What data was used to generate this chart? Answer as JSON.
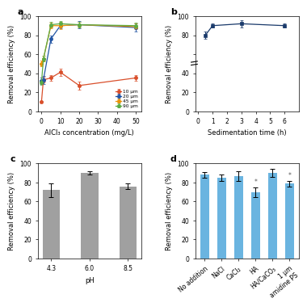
{
  "panel_a": {
    "x": [
      0,
      1,
      5,
      10,
      20,
      50
    ],
    "series": {
      "10 μm": {
        "y": [
          10,
          33,
          35,
          41,
          27,
          35
        ],
        "yerr": [
          1,
          3,
          3,
          4,
          4,
          3
        ],
        "color": "#d94f2b",
        "marker": "o"
      },
      "20 μm": {
        "y": [
          32,
          33,
          76,
          90,
          91,
          88
        ],
        "yerr": [
          3,
          4,
          4,
          3,
          4,
          4
        ],
        "color": "#2255a4",
        "marker": "o"
      },
      "45 μm": {
        "y": [
          50,
          55,
          90,
          90,
          91,
          89
        ],
        "yerr": [
          3,
          3,
          3,
          4,
          3,
          3
        ],
        "color": "#e8920a",
        "marker": "o"
      },
      "90 μm": {
        "y": [
          30,
          55,
          91,
          92,
          91,
          90
        ],
        "yerr": [
          2,
          3,
          3,
          3,
          3,
          3
        ],
        "color": "#5aab45",
        "marker": "o"
      }
    },
    "xlabel": "AlCl₃ concentration (mg/L)",
    "ylabel": "Removal efficiency (%)",
    "ylim": [
      0,
      100
    ],
    "xlim": [
      -2,
      53
    ],
    "xticks": [
      0,
      10,
      20,
      30,
      40,
      50
    ],
    "yticks": [
      0,
      20,
      40,
      60,
      80,
      100
    ]
  },
  "panel_b": {
    "x": [
      0.5,
      1,
      3,
      6
    ],
    "y": [
      80,
      90,
      92,
      90
    ],
    "yerr": [
      4,
      2,
      4,
      2
    ],
    "color": "#1a3a6b",
    "marker": "s",
    "xlabel": "Sedimentation time (h)",
    "ylabel": "Removal efficiency (%)",
    "ylim": [
      0,
      100
    ],
    "xlim": [
      -0.2,
      7
    ],
    "xticks": [
      0,
      1,
      2,
      3,
      4,
      5,
      6
    ],
    "yticks": [
      0,
      20,
      40,
      60,
      80,
      100
    ]
  },
  "panel_c": {
    "categories": [
      "4.3",
      "6.0",
      "8.5"
    ],
    "values": [
      72,
      90,
      76
    ],
    "yerr": [
      7,
      2,
      3
    ],
    "bar_color": "#a0a0a0",
    "xlabel": "pH",
    "ylabel": "Removal efficiency (%)",
    "ylim": [
      0,
      100
    ],
    "yticks": [
      0,
      20,
      40,
      60,
      80,
      100
    ]
  },
  "panel_d": {
    "categories": [
      "No addition",
      "NaCl",
      "CaCl₂",
      "HA",
      "HA/CaCO₃",
      "1 μm\namidine PS"
    ],
    "values": [
      88,
      85,
      87,
      70,
      90,
      79
    ],
    "yerr": [
      3,
      3,
      5,
      5,
      4,
      3
    ],
    "bar_color": "#6ab4e0",
    "xlabel": "",
    "ylabel": "Removal efficiency (%)",
    "ylim": [
      0,
      100
    ],
    "yticks": [
      0,
      20,
      40,
      60,
      80,
      100
    ],
    "asterisk_indices": [
      3,
      5
    ],
    "asterisk_color": "#555555"
  },
  "background_color": "#ffffff"
}
